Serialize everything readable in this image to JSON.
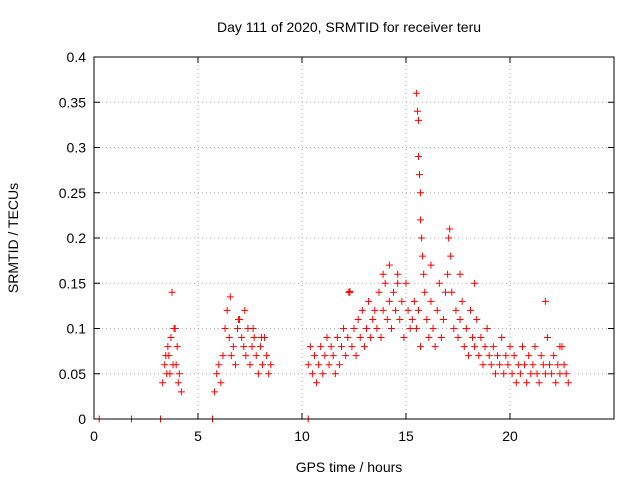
{
  "chart_data": {
    "type": "scatter",
    "title": "Day 111 of 2020, SRMTID for receiver teru",
    "xlabel": "GPS time / hours",
    "ylabel": "SRMTID / TECUs",
    "xlim": [
      0,
      25
    ],
    "ylim": [
      0,
      0.4
    ],
    "xticks": [
      0,
      5,
      10,
      15,
      20
    ],
    "xtick_labels": [
      "0",
      "5",
      "10",
      "15",
      "20"
    ],
    "yticks": [
      0,
      0.05,
      0.1,
      0.15,
      0.2,
      0.25,
      0.3,
      0.35,
      0.4
    ],
    "ytick_labels": [
      "0",
      "0.05",
      "0.1",
      "0.15",
      "0.2",
      "0.25",
      "0.3",
      "0.35",
      "0.4"
    ],
    "grid": true,
    "marker": "+",
    "color": "#ff0000",
    "series": [
      {
        "name": "SRMTID",
        "x": [
          0.25,
          1.8,
          3.2,
          5.7,
          10.3,
          3.3,
          3.4,
          3.5,
          3.6,
          3.7,
          3.8,
          3.9,
          4.0,
          4.1,
          4.2,
          3.45,
          3.75,
          3.85,
          3.95,
          4.05,
          3.55,
          3.65,
          5.8,
          5.9,
          6.0,
          6.1,
          6.2,
          6.3,
          6.4,
          6.5,
          6.6,
          6.7,
          6.8,
          6.9,
          7.0,
          7.1,
          7.2,
          7.3,
          7.4,
          7.5,
          7.6,
          7.7,
          7.8,
          7.9,
          8.0,
          8.1,
          8.2,
          8.3,
          8.4,
          8.5,
          6.55,
          6.95,
          7.25,
          7.65,
          8.05,
          10.3,
          10.4,
          10.5,
          10.6,
          10.7,
          10.8,
          10.9,
          11.0,
          11.1,
          11.2,
          11.3,
          11.4,
          11.5,
          11.6,
          11.7,
          11.8,
          11.9,
          12.0,
          12.1,
          12.2,
          12.3,
          12.4,
          12.5,
          12.6,
          12.7,
          12.8,
          12.9,
          13.0,
          13.1,
          13.2,
          13.3,
          13.4,
          13.5,
          13.6,
          13.7,
          13.8,
          13.9,
          14.0,
          14.1,
          14.2,
          14.3,
          14.4,
          14.5,
          14.6,
          14.7,
          14.8,
          14.9,
          15.0,
          15.1,
          15.2,
          15.3,
          15.4,
          15.5,
          15.55,
          15.6,
          15.6,
          15.65,
          15.7,
          15.7,
          15.75,
          15.8,
          15.85,
          15.9,
          15.5,
          15.6,
          15.7,
          16.0,
          16.1,
          16.2,
          16.3,
          16.4,
          16.5,
          16.6,
          16.7,
          16.8,
          16.9,
          17.0,
          17.05,
          17.1,
          17.15,
          17.2,
          17.3,
          17.4,
          17.5,
          17.6,
          17.7,
          17.8,
          17.9,
          18.0,
          18.1,
          18.2,
          18.3,
          18.4,
          18.5,
          18.6,
          18.7,
          18.8,
          18.9,
          19.0,
          19.1,
          19.2,
          19.3,
          19.4,
          19.5,
          19.6,
          19.7,
          19.8,
          19.9,
          20.0,
          20.1,
          20.2,
          20.3,
          20.4,
          20.5,
          20.6,
          20.7,
          20.8,
          20.9,
          21.0,
          21.1,
          21.2,
          21.3,
          21.4,
          21.5,
          21.6,
          21.7,
          21.8,
          21.9,
          22.0,
          22.1,
          22.2,
          22.3,
          22.4,
          22.5,
          22.6,
          22.7,
          22.8,
          12.25,
          12.3,
          13.9,
          14.2,
          14.6,
          16.2,
          17.6,
          18.3,
          21.7,
          22.4
        ],
        "y": [
          0,
          0,
          0,
          0,
          0,
          0.04,
          0.06,
          0.05,
          0.07,
          0.09,
          0.06,
          0.1,
          0.08,
          0.05,
          0.03,
          0.07,
          0.14,
          0.1,
          0.06,
          0.04,
          0.08,
          0.05,
          0.03,
          0.05,
          0.06,
          0.04,
          0.07,
          0.1,
          0.12,
          0.09,
          0.07,
          0.08,
          0.06,
          0.1,
          0.11,
          0.09,
          0.08,
          0.07,
          0.1,
          0.06,
          0.08,
          0.09,
          0.07,
          0.05,
          0.08,
          0.06,
          0.09,
          0.07,
          0.05,
          0.06,
          0.135,
          0.11,
          0.12,
          0.1,
          0.09,
          0.06,
          0.08,
          0.05,
          0.07,
          0.04,
          0.06,
          0.08,
          0.05,
          0.07,
          0.09,
          0.06,
          0.08,
          0.07,
          0.05,
          0.09,
          0.06,
          0.08,
          0.1,
          0.07,
          0.09,
          0.14,
          0.08,
          0.1,
          0.07,
          0.11,
          0.09,
          0.12,
          0.08,
          0.1,
          0.13,
          0.09,
          0.11,
          0.12,
          0.1,
          0.14,
          0.09,
          0.12,
          0.15,
          0.11,
          0.13,
          0.1,
          0.14,
          0.12,
          0.16,
          0.11,
          0.13,
          0.09,
          0.15,
          0.12,
          0.1,
          0.11,
          0.13,
          0.36,
          0.34,
          0.33,
          0.29,
          0.27,
          0.25,
          0.22,
          0.2,
          0.18,
          0.16,
          0.14,
          0.1,
          0.12,
          0.08,
          0.11,
          0.09,
          0.13,
          0.1,
          0.08,
          0.12,
          0.15,
          0.09,
          0.11,
          0.14,
          0.16,
          0.2,
          0.21,
          0.18,
          0.14,
          0.1,
          0.12,
          0.09,
          0.11,
          0.13,
          0.08,
          0.1,
          0.07,
          0.12,
          0.09,
          0.08,
          0.11,
          0.07,
          0.09,
          0.06,
          0.08,
          0.1,
          0.07,
          0.06,
          0.08,
          0.05,
          0.07,
          0.06,
          0.09,
          0.05,
          0.07,
          0.06,
          0.08,
          0.05,
          0.07,
          0.04,
          0.06,
          0.05,
          0.08,
          0.06,
          0.04,
          0.07,
          0.05,
          0.06,
          0.08,
          0.05,
          0.04,
          0.07,
          0.06,
          0.05,
          0.09,
          0.06,
          0.05,
          0.07,
          0.04,
          0.06,
          0.05,
          0.08,
          0.06,
          0.05,
          0.04,
          0.14,
          0.141,
          0.16,
          0.17,
          0.15,
          0.17,
          0.16,
          0.15,
          0.13,
          0.08
        ]
      }
    ]
  }
}
